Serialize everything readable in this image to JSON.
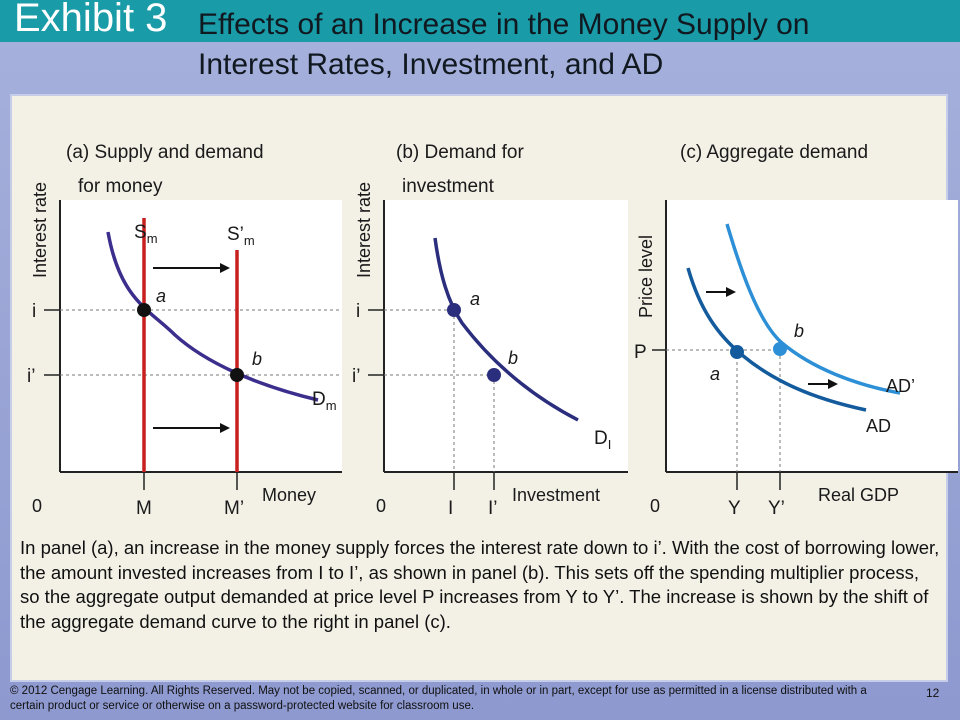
{
  "header": {
    "exhibit": "Exhibit 3",
    "title_line1": "Effects of an Increase in the Money Supply on",
    "title_line2": "Interest Rates, Investment, and AD"
  },
  "panel_a": {
    "title1": "(a) Supply and demand",
    "title2": "for money",
    "y_axis": "Interest rate",
    "x_axis": "Money",
    "origin": "0",
    "tick_i": "i",
    "tick_i_prime": "i’",
    "tick_M": "M",
    "tick_M_prime": "M’",
    "supply_S": "S",
    "supply_sub": "m",
    "supply2_S": "S’",
    "supply2_sub": "m",
    "demand_D": "D",
    "demand_sub": "m",
    "point_a": "a",
    "point_b": "b"
  },
  "panel_b": {
    "title1": "(b) Demand for",
    "title2": "investment",
    "y_axis": "Interest rate",
    "x_axis": "Investment",
    "origin": "0",
    "tick_i": "i",
    "tick_i_prime": "i’",
    "tick_I": "I",
    "tick_I_prime": "I’",
    "demand_D": "D",
    "demand_sub": "I",
    "point_a": "a",
    "point_b": "b"
  },
  "panel_c": {
    "title": "(c) Aggregate demand",
    "y_axis": "Price level",
    "x_axis": "Real GDP",
    "origin": "0",
    "tick_P": "P",
    "tick_Y": "Y",
    "tick_Y_prime": "Y’",
    "curve_AD": "AD",
    "curve_AD_prime": "AD’",
    "point_a": "a",
    "point_b": "b"
  },
  "colors": {
    "supply_lines": "#c8201e",
    "demand_money": "#3b2e8c",
    "demand_investment": "#2b2d7d",
    "ad": "#135b9c",
    "ad_prime": "#2d8fd6",
    "top_bar": "#1a9ba8"
  },
  "caption": "In panel (a), an increase in the money supply forces the interest rate down to i’. With the cost of borrowing lower, the amount invested increases from I to I’, as shown in panel (b). This sets off the spending multiplier process, so the aggregate output demanded at price level P increases from Y to Y’. The increase is shown by the shift of the aggregate demand curve to the right in panel (c).",
  "footer": "© 2012 Cengage Learning. All Rights Reserved. May not be copied, scanned, or duplicated, in whole or in part, except for use as permitted in a license distributed with a certain product or service or otherwise on a password-protected website for classroom use.",
  "page_number": "12"
}
